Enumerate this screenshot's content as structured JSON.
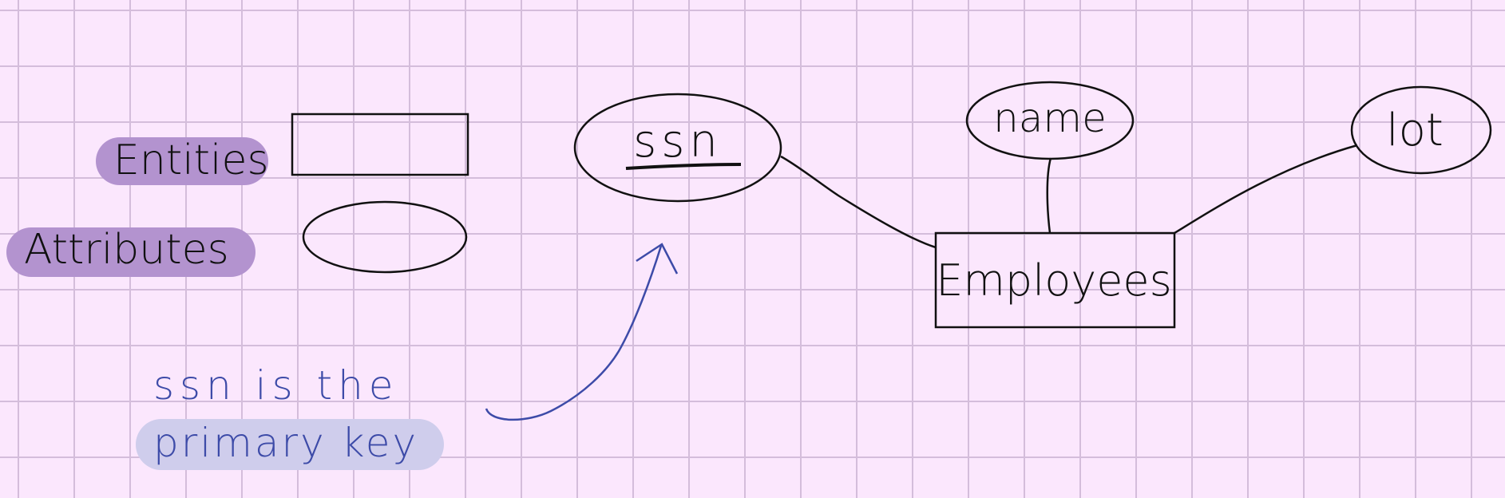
{
  "legend": {
    "entities_label": "Entities",
    "attributes_label": "Attributes"
  },
  "diagram": {
    "entity": {
      "label": "Employees"
    },
    "attributes": [
      {
        "key": "ssn",
        "label": "ssn",
        "is_key": true
      },
      {
        "key": "name",
        "label": "name",
        "is_key": false
      },
      {
        "key": "lot",
        "label": "lot",
        "is_key": false
      }
    ]
  },
  "annotation": {
    "line1": "ssn is the",
    "line2": "primary key"
  },
  "colors": {
    "background": "#fbe7fd",
    "grid": "#d4bddb",
    "ink": "#111111",
    "blue_ink": "#3d4ba8",
    "purple_highlight": "#b393cf",
    "blue_highlight": "#cfcdec"
  }
}
